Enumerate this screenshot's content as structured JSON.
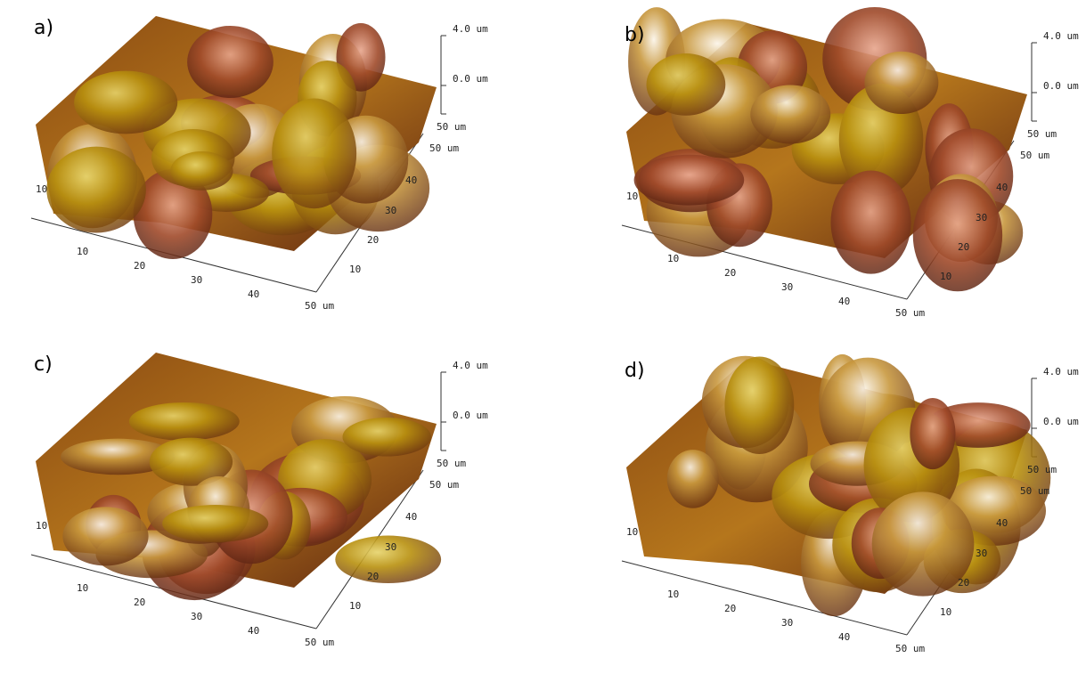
{
  "panels": [
    {
      "label": "a)",
      "z_ticks": [
        "4.0 um",
        "0.0 um",
        "50 um"
      ],
      "y_ticks": [
        "50 um",
        "40",
        "30",
        "20",
        "10"
      ],
      "x_ticks": [
        "10",
        "20",
        "30",
        "40",
        "50 um"
      ],
      "left_tick": "10"
    },
    {
      "label": "b)",
      "z_ticks": [
        "4.0 um",
        "0.0 um",
        "50 um"
      ],
      "y_ticks": [
        "50 um",
        "40",
        "30",
        "20",
        "10"
      ],
      "x_ticks": [
        "10",
        "20",
        "30",
        "40",
        "50 um"
      ],
      "left_tick": "10"
    },
    {
      "label": "c)",
      "z_ticks": [
        "4.0 um",
        "0.0 um",
        "50 um"
      ],
      "y_ticks": [
        "50 um",
        "40",
        "30",
        "20",
        "10"
      ],
      "x_ticks": [
        "10",
        "20",
        "30",
        "40",
        "50 um"
      ],
      "left_tick": "10"
    },
    {
      "label": "d)",
      "z_ticks": [
        "4.0 um",
        "0.0 um",
        "50 um"
      ],
      "y_ticks": [
        "50 um",
        "40",
        "30",
        "20",
        "10"
      ],
      "x_ticks": [
        "10",
        "20",
        "30",
        "40",
        "50 um"
      ],
      "left_tick": "10"
    }
  ]
}
